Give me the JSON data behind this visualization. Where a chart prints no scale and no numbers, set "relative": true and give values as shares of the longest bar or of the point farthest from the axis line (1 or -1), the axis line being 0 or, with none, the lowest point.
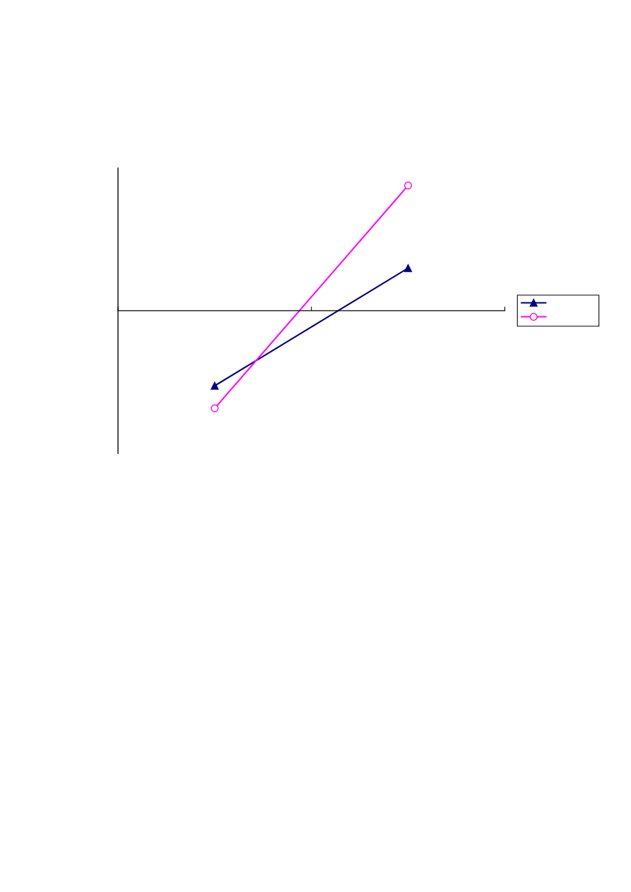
{
  "chart_data": {
    "type": "line",
    "relative": true,
    "categories": [
      null,
      null
    ],
    "tick_labels": false,
    "series": [
      {
        "color": "#000080",
        "marker": "triangle",
        "values": [
          -0.6,
          0.34
        ]
      },
      {
        "color": "#ff00ff",
        "marker": "circle",
        "values": [
          -0.78,
          1
        ]
      }
    ]
  }
}
